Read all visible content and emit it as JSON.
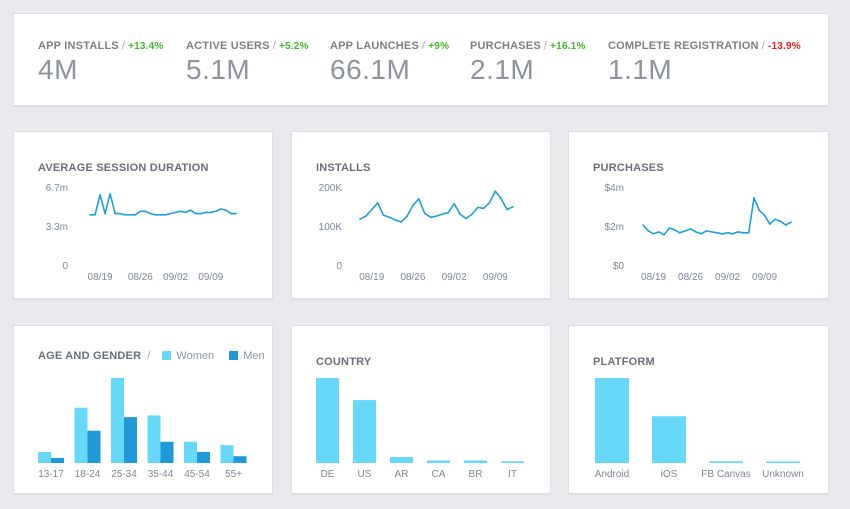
{
  "kpis": [
    {
      "label": "APP INSTALLS",
      "delta": "+13.4%",
      "value": "4M",
      "trend": "up"
    },
    {
      "label": "ACTIVE USERS",
      "delta": "+5.2%",
      "value": "5.1M",
      "trend": "up"
    },
    {
      "label": "APP LAUNCHES",
      "delta": "+9%",
      "value": "66.1M",
      "trend": "up"
    },
    {
      "label": "PURCHASES",
      "delta": "+16.1%",
      "value": "2.1M",
      "trend": "up"
    },
    {
      "label": "COMPLETE REGISTRATION",
      "delta": "-13.9%",
      "value": "1.1M",
      "trend": "down"
    }
  ],
  "separator": "/",
  "colors": {
    "line": "#1f9fd8",
    "women": "#67d8f8",
    "men": "#2099d6",
    "up": "#42b72a",
    "down": "#e02020"
  },
  "chart_data": [
    {
      "type": "line",
      "title": "AVERAGE SESSION DURATION",
      "ylim": [
        0,
        6.7
      ],
      "yticks": [
        {
          "v": 6.7,
          "label": "6.7m"
        },
        {
          "v": 3.35,
          "label": "3.3m"
        },
        {
          "v": 0,
          "label": "0"
        }
      ],
      "xticks": [
        {
          "i": 2,
          "label": "08/19"
        },
        {
          "i": 10,
          "label": "08/26"
        },
        {
          "i": 17,
          "label": "09/02"
        },
        {
          "i": 24,
          "label": "09/09"
        }
      ],
      "values": [
        4.4,
        4.4,
        6.1,
        4.5,
        6.2,
        4.5,
        4.5,
        4.4,
        4.4,
        4.4,
        4.7,
        4.7,
        4.5,
        4.4,
        4.4,
        4.4,
        4.5,
        4.6,
        4.7,
        4.6,
        4.8,
        4.5,
        4.5,
        4.6,
        4.6,
        4.7,
        4.9,
        4.8,
        4.5,
        4.5
      ]
    },
    {
      "type": "line",
      "title": "INSTALLS",
      "ylim": [
        0,
        200
      ],
      "yticks": [
        {
          "v": 200,
          "label": "200K"
        },
        {
          "v": 100,
          "label": "100K"
        },
        {
          "v": 0,
          "label": "0"
        }
      ],
      "xticks": [
        {
          "i": 2,
          "label": "08/19"
        },
        {
          "i": 9,
          "label": "08/26"
        },
        {
          "i": 16,
          "label": "09/02"
        },
        {
          "i": 23,
          "label": "09/09"
        }
      ],
      "values": [
        120,
        128,
        145,
        162,
        130,
        125,
        118,
        113,
        128,
        156,
        172,
        135,
        125,
        128,
        133,
        137,
        160,
        133,
        122,
        132,
        150,
        148,
        162,
        192,
        172,
        145,
        152
      ]
    },
    {
      "type": "line",
      "title": "PURCHASES",
      "ylim": [
        0,
        4
      ],
      "yticks": [
        {
          "v": 4,
          "label": "$4m"
        },
        {
          "v": 2,
          "label": "$2m"
        },
        {
          "v": 0,
          "label": "$0"
        }
      ],
      "xticks": [
        {
          "i": 2,
          "label": "08/19"
        },
        {
          "i": 9,
          "label": "08/26"
        },
        {
          "i": 16,
          "label": "09/02"
        },
        {
          "i": 23,
          "label": "09/09"
        }
      ],
      "values": [
        2.1,
        1.8,
        1.65,
        1.75,
        1.6,
        1.95,
        1.85,
        1.7,
        1.8,
        1.9,
        1.75,
        1.65,
        1.8,
        1.75,
        1.7,
        1.65,
        1.7,
        1.65,
        1.75,
        1.7,
        1.7,
        3.5,
        2.85,
        2.6,
        2.15,
        2.4,
        2.3,
        2.1,
        2.25
      ]
    },
    {
      "type": "bar",
      "title": "AGE AND GENDER",
      "categories": [
        "13-17",
        "18-24",
        "25-34",
        "35-44",
        "45-54",
        "55+"
      ],
      "ylim": [
        0,
        100
      ],
      "series": [
        {
          "name": "Women",
          "values": [
            13,
            65,
            100,
            56,
            25,
            21
          ]
        },
        {
          "name": "Men",
          "values": [
            6,
            38,
            54,
            25,
            13,
            8
          ]
        }
      ]
    },
    {
      "type": "bar",
      "title": "COUNTRY",
      "categories": [
        "DE",
        "US",
        "AR",
        "CA",
        "BR",
        "IT"
      ],
      "ylim": [
        0,
        100
      ],
      "values": [
        100,
        74,
        7,
        3,
        3,
        2
      ]
    },
    {
      "type": "bar",
      "title": "PLATFORM",
      "categories": [
        "Android",
        "iOS",
        "FB Canvas",
        "Unknown"
      ],
      "ylim": [
        0,
        100
      ],
      "values": [
        100,
        55,
        2,
        1
      ]
    }
  ]
}
